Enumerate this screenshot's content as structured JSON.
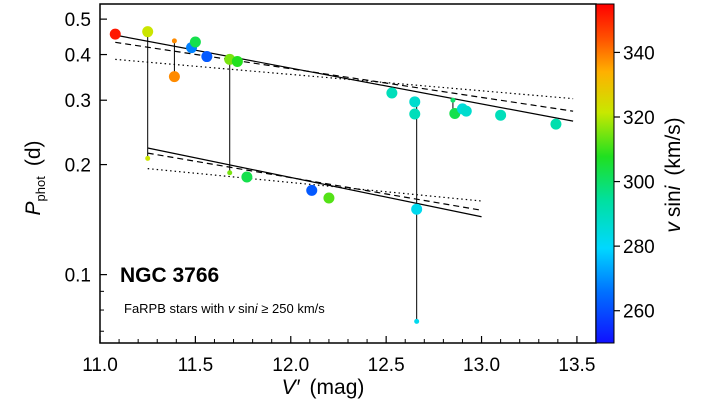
{
  "chart_data": {
    "type": "scatter",
    "xlim": [
      11.0,
      13.6
    ],
    "ylim": [
      0.065,
      0.55
    ],
    "y_scale": "log",
    "grid": false,
    "xlabel_main": "V′",
    "xlabel_unit": "(mag)",
    "ylabel_main": "P",
    "ylabel_sub": "phot",
    "ylabel_unit": "(d)",
    "colorbar_label_v": "v",
    "colorbar_label_rest": "sin",
    "colorbar_label_i": "i",
    "colorbar_label_unit": "(km/s)",
    "colorbar_range": [
      250,
      355
    ],
    "colorbar_ticks": [
      {
        "value": 260,
        "label": "260"
      },
      {
        "value": 280,
        "label": "280"
      },
      {
        "value": 300,
        "label": "300"
      },
      {
        "value": 320,
        "label": "320"
      },
      {
        "value": 340,
        "label": "340"
      }
    ],
    "x_ticks": [
      {
        "value": 11.0,
        "label": "11.0"
      },
      {
        "value": 11.5,
        "label": "11.5"
      },
      {
        "value": 12.0,
        "label": "12.0"
      },
      {
        "value": 12.5,
        "label": "12.5"
      },
      {
        "value": 13.0,
        "label": "13.0"
      },
      {
        "value": 13.5,
        "label": "13.5"
      }
    ],
    "y_ticks": [
      {
        "value": 0.1,
        "label": "0.1"
      },
      {
        "value": 0.2,
        "label": "0.2"
      },
      {
        "value": 0.3,
        "label": "0.3"
      },
      {
        "value": 0.4,
        "label": "0.4"
      },
      {
        "value": 0.5,
        "label": "0.5"
      }
    ],
    "annotation_title": "NGC 3766",
    "annotation_subtitle_a": "FaRPB stars with ",
    "annotation_subtitle_v": "v",
    "annotation_subtitle_b": " sin",
    "annotation_subtitle_i": "i",
    "annotation_subtitle_c": " ≥ 250 km/s",
    "points": [
      {
        "x": 11.08,
        "y": 0.455,
        "v": 352,
        "size": "large"
      },
      {
        "x": 11.25,
        "y": 0.462,
        "v": 322,
        "size": "large"
      },
      {
        "x": 11.25,
        "y": 0.208,
        "v": 322,
        "size": "small"
      },
      {
        "x": 11.39,
        "y": 0.436,
        "v": 338,
        "size": "small"
      },
      {
        "x": 11.39,
        "y": 0.348,
        "v": 338,
        "size": "large"
      },
      {
        "x": 11.48,
        "y": 0.418,
        "v": 268,
        "size": "large"
      },
      {
        "x": 11.5,
        "y": 0.433,
        "v": 303,
        "size": "large"
      },
      {
        "x": 11.56,
        "y": 0.395,
        "v": 262,
        "size": "large"
      },
      {
        "x": 11.68,
        "y": 0.388,
        "v": 315,
        "size": "large"
      },
      {
        "x": 11.68,
        "y": 0.19,
        "v": 315,
        "size": "small"
      },
      {
        "x": 11.72,
        "y": 0.383,
        "v": 308,
        "size": "large"
      },
      {
        "x": 11.77,
        "y": 0.185,
        "v": 303,
        "size": "large"
      },
      {
        "x": 12.11,
        "y": 0.17,
        "v": 262,
        "size": "large"
      },
      {
        "x": 12.2,
        "y": 0.162,
        "v": 312,
        "size": "large"
      },
      {
        "x": 12.53,
        "y": 0.314,
        "v": 290,
        "size": "large"
      },
      {
        "x": 12.65,
        "y": 0.297,
        "v": 287,
        "size": "large"
      },
      {
        "x": 12.65,
        "y": 0.275,
        "v": 290,
        "size": "large"
      },
      {
        "x": 12.66,
        "y": 0.151,
        "v": 282,
        "size": "large"
      },
      {
        "x": 12.66,
        "y": 0.0745,
        "v": 282,
        "size": "small"
      },
      {
        "x": 12.85,
        "y": 0.3,
        "v": 300,
        "size": "small"
      },
      {
        "x": 12.86,
        "y": 0.276,
        "v": 303,
        "size": "large"
      },
      {
        "x": 12.9,
        "y": 0.284,
        "v": 285,
        "size": "large"
      },
      {
        "x": 12.92,
        "y": 0.28,
        "v": 287,
        "size": "large"
      },
      {
        "x": 13.1,
        "y": 0.273,
        "v": 290,
        "size": "large"
      },
      {
        "x": 13.39,
        "y": 0.258,
        "v": 292,
        "size": "large"
      }
    ],
    "connectors": [
      {
        "x": 11.25,
        "y1": 0.462,
        "y2": 0.208
      },
      {
        "x": 11.39,
        "y1": 0.436,
        "y2": 0.348
      },
      {
        "x": 11.68,
        "y1": 0.388,
        "y2": 0.19
      },
      {
        "x": 12.66,
        "y1": 0.297,
        "y2": 0.0745
      },
      {
        "x": 12.85,
        "y1": 0.3,
        "y2": 0.276
      }
    ],
    "fit_lines": [
      {
        "style": "solid",
        "x1": 11.08,
        "y1": 0.452,
        "x2": 13.48,
        "y2": 0.263
      },
      {
        "style": "dashed",
        "x1": 11.08,
        "y1": 0.432,
        "x2": 13.48,
        "y2": 0.28
      },
      {
        "style": "dotted",
        "x1": 11.08,
        "y1": 0.388,
        "x2": 13.48,
        "y2": 0.303
      },
      {
        "style": "solid",
        "x1": 11.25,
        "y1": 0.222,
        "x2": 13.0,
        "y2": 0.144
      },
      {
        "style": "dashed",
        "x1": 11.25,
        "y1": 0.215,
        "x2": 13.0,
        "y2": 0.15
      },
      {
        "style": "dotted",
        "x1": 11.25,
        "y1": 0.195,
        "x2": 13.0,
        "y2": 0.159
      }
    ]
  }
}
